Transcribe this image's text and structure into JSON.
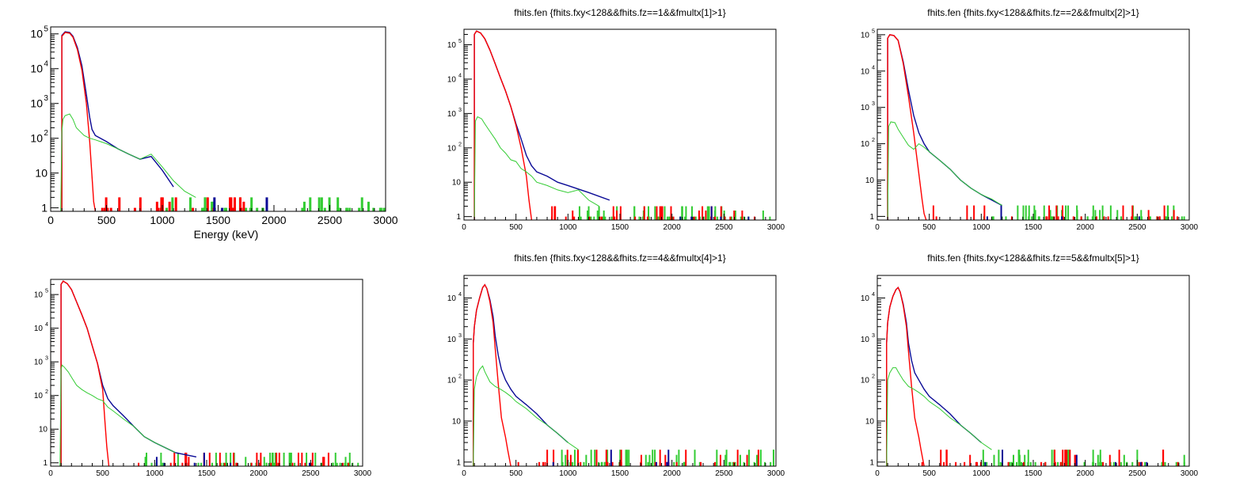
{
  "colors": {
    "blue": "#0a0a96",
    "red": "#ff0000",
    "green": "#33cc33",
    "frame": "#000000"
  },
  "chart_data": [
    {
      "type": "line",
      "title": "",
      "xlabel": "Energy (keV)",
      "ylabel": "",
      "xlim": [
        0,
        3000
      ],
      "yscale": "log",
      "xticks": [
        "0",
        "500",
        "1000",
        "1500",
        "2000",
        "2500",
        "3000"
      ],
      "yticks": [
        {
          "label": "1",
          "pow": 0
        },
        {
          "label": "10",
          "pow": 1
        },
        {
          "label": "10",
          "sup": "2",
          "pow": 2
        },
        {
          "label": "10",
          "sup": "3",
          "pow": 3
        },
        {
          "label": "10",
          "sup": "4",
          "pow": 4
        },
        {
          "label": "10",
          "sup": "5",
          "pow": 5
        }
      ],
      "series": [
        {
          "color": "blue",
          "x": [
            100,
            130,
            170,
            200,
            240,
            280,
            320,
            350,
            370,
            400,
            500,
            600,
            700,
            800,
            900,
            1000,
            1100
          ],
          "y": [
            90000,
            115000,
            110000,
            85000,
            40000,
            12000,
            1800,
            400,
            180,
            120,
            80,
            50,
            35,
            25,
            30,
            12,
            4
          ]
        },
        {
          "color": "red",
          "x": [
            100,
            130,
            170,
            200,
            240,
            280,
            320,
            350,
            370,
            385,
            400
          ],
          "y": [
            85000,
            110000,
            105000,
            80000,
            35000,
            9000,
            1000,
            80,
            8,
            1.5,
            0.8
          ]
        },
        {
          "color": "green",
          "x": [
            90,
            100,
            110,
            130,
            170,
            200,
            230,
            260,
            300,
            350,
            400,
            500,
            600,
            700,
            800,
            900,
            1000,
            1100,
            1200,
            1300
          ],
          "y": [
            0.8,
            150,
            350,
            450,
            500,
            350,
            200,
            160,
            120,
            100,
            90,
            70,
            50,
            35,
            25,
            35,
            15,
            6,
            3,
            2
          ]
        }
      ],
      "spikes": {
        "red_range": [
          450,
          1800
        ],
        "red_count": 26,
        "green_range": [
          1000,
          3000
        ],
        "green_count": 45,
        "blue_range": [
          1300,
          2800
        ],
        "blue_count": 3
      }
    },
    {
      "type": "line",
      "title": "fhits.fen {fhits.fxy<128&&fhits.fz==1&&fmultx[1]>1}",
      "xlabel": "",
      "ylabel": "",
      "xlim": [
        0,
        3000
      ],
      "yscale": "log",
      "xticks": [
        "0",
        "500",
        "1000",
        "1500",
        "2000",
        "2500",
        "3000"
      ],
      "yticks": [
        {
          "label": "1",
          "pow": 0
        },
        {
          "label": "10",
          "pow": 1
        },
        {
          "label": "10",
          "sup": "2",
          "pow": 2
        },
        {
          "label": "10",
          "sup": "3",
          "pow": 3
        },
        {
          "label": "10",
          "sup": "4",
          "pow": 4
        },
        {
          "label": "10",
          "sup": "5",
          "pow": 5
        }
      ],
      "series": [
        {
          "color": "blue",
          "x": [
            100,
            120,
            160,
            200,
            250,
            300,
            350,
            400,
            450,
            500,
            550,
            600,
            650,
            700,
            800,
            900,
            1000,
            1200,
            1400
          ],
          "y": [
            200000,
            250000,
            220000,
            150000,
            70000,
            28000,
            11000,
            4500,
            1600,
            500,
            180,
            60,
            30,
            20,
            15,
            10,
            8,
            5,
            3
          ]
        },
        {
          "color": "red",
          "x": [
            100,
            120,
            160,
            200,
            250,
            300,
            350,
            400,
            450,
            500,
            550,
            600,
            625,
            650
          ],
          "y": [
            200000,
            250000,
            220000,
            150000,
            70000,
            28000,
            11000,
            4500,
            1600,
            450,
            100,
            15,
            3,
            0.8
          ]
        },
        {
          "color": "green",
          "x": [
            100,
            110,
            130,
            170,
            200,
            250,
            300,
            350,
            400,
            450,
            500,
            550,
            600,
            650,
            700,
            800,
            900,
            1000,
            1100,
            1200,
            1300
          ],
          "y": [
            0.8,
            600,
            800,
            700,
            500,
            300,
            180,
            100,
            70,
            45,
            40,
            25,
            20,
            15,
            10,
            8,
            6,
            5,
            6,
            3,
            2
          ]
        }
      ],
      "spikes": {
        "red_range": [
          650,
          2900
        ],
        "red_count": 40,
        "green_range": [
          1100,
          3000
        ],
        "green_count": 60,
        "blue_range": [
          1300,
          2800
        ],
        "blue_count": 5
      }
    },
    {
      "type": "line",
      "title": "fhits.fen {fhits.fxy<128&&fhits.fz==2&&fmultx[2]>1}",
      "xlabel": "",
      "ylabel": "",
      "xlim": [
        0,
        3000
      ],
      "yscale": "log",
      "xticks": [
        "0",
        "500",
        "1000",
        "1500",
        "2000",
        "2500",
        "3000"
      ],
      "yticks": [
        {
          "label": "1",
          "pow": 0
        },
        {
          "label": "10",
          "pow": 1
        },
        {
          "label": "10",
          "sup": "2",
          "pow": 2
        },
        {
          "label": "10",
          "sup": "3",
          "pow": 3
        },
        {
          "label": "10",
          "sup": "4",
          "pow": 4
        },
        {
          "label": "10",
          "sup": "5",
          "pow": 5
        }
      ],
      "series": [
        {
          "color": "blue",
          "x": [
            100,
            120,
            160,
            200,
            250,
            300,
            350,
            400,
            450,
            500,
            600,
            700,
            800,
            900,
            1000,
            1200
          ],
          "y": [
            80000,
            100000,
            95000,
            70000,
            18000,
            3000,
            600,
            200,
            100,
            60,
            35,
            20,
            10,
            6,
            4,
            2
          ]
        },
        {
          "color": "red",
          "x": [
            100,
            120,
            160,
            200,
            250,
            300,
            350,
            400,
            430,
            450,
            470
          ],
          "y": [
            80000,
            100000,
            95000,
            70000,
            16000,
            2000,
            200,
            15,
            3,
            1.2,
            0.8
          ]
        },
        {
          "color": "green",
          "x": [
            100,
            110,
            130,
            170,
            200,
            250,
            300,
            350,
            400,
            450,
            500,
            600,
            700,
            800,
            900,
            1000,
            1100,
            1200
          ],
          "y": [
            0.8,
            300,
            400,
            380,
            250,
            150,
            90,
            70,
            100,
            80,
            60,
            35,
            20,
            10,
            6,
            4,
            3,
            2
          ]
        }
      ],
      "spikes": {
        "red_range": [
          450,
          2900
        ],
        "red_count": 30,
        "green_range": [
          1000,
          3000
        ],
        "green_count": 55,
        "blue_range": [
          1000,
          2800
        ],
        "blue_count": 4
      }
    },
    {
      "type": "line",
      "title": "",
      "xlabel": "",
      "ylabel": "",
      "xlim": [
        0,
        3000
      ],
      "yscale": "log",
      "xticks": [
        "0",
        "500",
        "1000",
        "1500",
        "2000",
        "2500",
        "3000"
      ],
      "yticks": [
        {
          "label": "1",
          "pow": 0
        },
        {
          "label": "10",
          "pow": 1
        },
        {
          "label": "10",
          "sup": "2",
          "pow": 2
        },
        {
          "label": "10",
          "sup": "3",
          "pow": 3
        },
        {
          "label": "10",
          "sup": "4",
          "pow": 4
        },
        {
          "label": "10",
          "sup": "5",
          "pow": 5
        }
      ],
      "series": [
        {
          "color": "blue",
          "x": [
            100,
            120,
            160,
            200,
            250,
            300,
            350,
            400,
            450,
            500,
            550,
            600,
            700,
            800,
            900,
            1000,
            1200,
            1400
          ],
          "y": [
            200000,
            250000,
            210000,
            140000,
            60000,
            25000,
            10000,
            3000,
            900,
            200,
            80,
            50,
            25,
            12,
            6,
            4,
            2,
            1.5
          ]
        },
        {
          "color": "red",
          "x": [
            100,
            120,
            160,
            200,
            250,
            300,
            350,
            400,
            450,
            500,
            520,
            540,
            560
          ],
          "y": [
            200000,
            250000,
            210000,
            140000,
            60000,
            25000,
            10000,
            3000,
            900,
            150,
            20,
            3,
            0.8
          ]
        },
        {
          "color": "green",
          "x": [
            90,
            100,
            110,
            130,
            170,
            200,
            250,
            300,
            350,
            400,
            450,
            500,
            550,
            600,
            700,
            800,
            900,
            1000,
            1200
          ],
          "y": [
            0.8,
            600,
            800,
            700,
            500,
            350,
            200,
            150,
            120,
            100,
            80,
            70,
            45,
            35,
            20,
            12,
            6,
            4,
            2
          ]
        }
      ],
      "spikes": {
        "red_range": [
          560,
          2900
        ],
        "red_count": 35,
        "green_range": [
          900,
          3000
        ],
        "green_count": 60,
        "blue_range": [
          1000,
          2900
        ],
        "blue_count": 6
      }
    },
    {
      "type": "line",
      "title": "fhits.fen {fhits.fxy<128&&fhits.fz==4&&fmultx[4]>1}",
      "xlabel": "",
      "ylabel": "",
      "xlim": [
        0,
        3000
      ],
      "yscale": "log",
      "xticks": [
        "0",
        "500",
        "1000",
        "1500",
        "2000",
        "2500",
        "3000"
      ],
      "yticks": [
        {
          "label": "1",
          "pow": 0
        },
        {
          "label": "10",
          "pow": 1
        },
        {
          "label": "10",
          "sup": "2",
          "pow": 2
        },
        {
          "label": "10",
          "sup": "3",
          "pow": 3
        },
        {
          "label": "10",
          "sup": "4",
          "pow": 4
        }
      ],
      "series": [
        {
          "color": "blue",
          "x": [
            90,
            100,
            120,
            150,
            180,
            200,
            220,
            250,
            280,
            300,
            330,
            360,
            400,
            450,
            500,
            600,
            700,
            800,
            900,
            1000
          ],
          "y": [
            800,
            2000,
            5000,
            10000,
            18000,
            21000,
            17000,
            9000,
            3500,
            1200,
            400,
            180,
            100,
            60,
            40,
            25,
            15,
            8,
            5,
            3
          ]
        },
        {
          "color": "red",
          "x": [
            90,
            100,
            120,
            150,
            180,
            200,
            220,
            250,
            280,
            300,
            330,
            360,
            400,
            420,
            450
          ],
          "y": [
            800,
            2000,
            5000,
            10000,
            18000,
            21000,
            17000,
            8000,
            2500,
            600,
            80,
            12,
            4,
            2,
            0.8
          ]
        },
        {
          "color": "green",
          "x": [
            90,
            100,
            120,
            150,
            180,
            200,
            250,
            300,
            350,
            400,
            450,
            500,
            600,
            700,
            800,
            900,
            1000,
            1100
          ],
          "y": [
            0.8,
            60,
            120,
            180,
            220,
            160,
            90,
            70,
            60,
            50,
            40,
            30,
            20,
            12,
            8,
            5,
            3,
            2
          ]
        }
      ],
      "spikes": {
        "red_range": [
          420,
          2900
        ],
        "red_count": 35,
        "green_range": [
          900,
          3000
        ],
        "green_count": 60,
        "blue_range": [
          800,
          2900
        ],
        "blue_count": 5
      }
    },
    {
      "type": "line",
      "title": "fhits.fen {fhits.fxy<128&&fhits.fz==5&&fmultx[5]>1}",
      "xlabel": "",
      "ylabel": "",
      "xlim": [
        0,
        3000
      ],
      "yscale": "log",
      "xticks": [
        "0",
        "500",
        "1000",
        "1500",
        "2000",
        "2500",
        "3000"
      ],
      "yticks": [
        {
          "label": "1",
          "pow": 0
        },
        {
          "label": "10",
          "pow": 1
        },
        {
          "label": "10",
          "sup": "2",
          "pow": 2
        },
        {
          "label": "10",
          "sup": "3",
          "pow": 3
        },
        {
          "label": "10",
          "sup": "4",
          "pow": 4
        }
      ],
      "series": [
        {
          "color": "blue",
          "x": [
            90,
            100,
            120,
            150,
            180,
            200,
            220,
            250,
            280,
            300,
            330,
            360,
            400,
            450,
            500,
            600,
            700,
            800,
            900,
            1000
          ],
          "y": [
            800,
            2500,
            6000,
            11000,
            16000,
            18000,
            14000,
            7000,
            2500,
            800,
            300,
            150,
            100,
            60,
            40,
            25,
            15,
            8,
            5,
            3
          ]
        },
        {
          "color": "red",
          "x": [
            90,
            100,
            120,
            150,
            180,
            200,
            220,
            250,
            280,
            300,
            330,
            360,
            400,
            420,
            450
          ],
          "y": [
            800,
            2500,
            6000,
            11000,
            16000,
            18000,
            14000,
            6500,
            2000,
            500,
            70,
            12,
            4,
            2,
            0.8
          ]
        },
        {
          "color": "green",
          "x": [
            90,
            100,
            120,
            150,
            180,
            200,
            250,
            300,
            350,
            400,
            450,
            500,
            600,
            700,
            800,
            900,
            1000,
            1100
          ],
          "y": [
            0.8,
            100,
            150,
            200,
            200,
            160,
            100,
            70,
            60,
            50,
            40,
            30,
            20,
            12,
            8,
            5,
            3,
            2
          ]
        }
      ],
      "spikes": {
        "red_range": [
          420,
          2900
        ],
        "red_count": 35,
        "green_range": [
          900,
          3000
        ],
        "green_count": 60,
        "blue_range": [
          800,
          2900
        ],
        "blue_count": 6
      }
    }
  ]
}
